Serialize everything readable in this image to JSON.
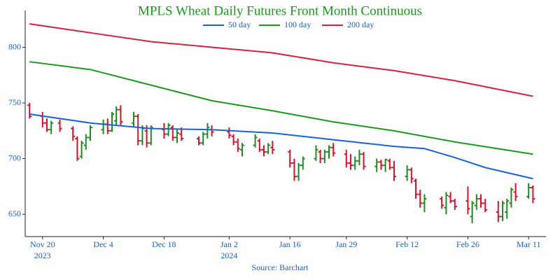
{
  "chart_data": {
    "type": "ohlc",
    "title": "MPLS Wheat Daily Futures Front Month Continuous",
    "source": "Source: Barchart",
    "xlim": [
      "2023-11-16",
      "2024-03-15"
    ],
    "xticks": [
      {
        "value": "2023-11-20",
        "label": "Nov 20",
        "year": "2023"
      },
      {
        "value": "2023-12-04",
        "label": "Dec 4"
      },
      {
        "value": "2023-12-18",
        "label": "Dec 18"
      },
      {
        "value": "2024-01-02",
        "label": "Jan 2",
        "year": "2024"
      },
      {
        "value": "2024-01-16",
        "label": "Jan 16"
      },
      {
        "value": "2024-01-29",
        "label": "Jan 29"
      },
      {
        "value": "2024-02-12",
        "label": "Feb 12"
      },
      {
        "value": "2024-02-26",
        "label": "Feb 26"
      },
      {
        "value": "2024-03-11",
        "label": "Mar 11"
      }
    ],
    "ylim": [
      630,
      833
    ],
    "yticks": [
      650,
      700,
      750,
      800
    ],
    "up_color": "#1e8c1e",
    "down_color": "#e0102a",
    "bars": {
      "x": [
        "2023-11-17",
        "2023-11-20",
        "2023-11-21",
        "2023-11-22",
        "2023-11-24",
        "2023-11-27",
        "2023-11-28",
        "2023-11-29",
        "2023-11-30",
        "2023-12-01",
        "2023-12-04",
        "2023-12-05",
        "2023-12-06",
        "2023-12-07",
        "2023-12-08",
        "2023-12-11",
        "2023-12-12",
        "2023-12-13",
        "2023-12-14",
        "2023-12-15",
        "2023-12-18",
        "2023-12-19",
        "2023-12-20",
        "2023-12-21",
        "2023-12-22",
        "2023-12-26",
        "2023-12-27",
        "2023-12-28",
        "2023-12-29",
        "2024-01-02",
        "2024-01-03",
        "2024-01-04",
        "2024-01-05",
        "2024-01-08",
        "2024-01-09",
        "2024-01-10",
        "2024-01-11",
        "2024-01-12",
        "2024-01-16",
        "2024-01-17",
        "2024-01-18",
        "2024-01-19",
        "2024-01-22",
        "2024-01-23",
        "2024-01-24",
        "2024-01-25",
        "2024-01-26",
        "2024-01-29",
        "2024-01-30",
        "2024-01-31",
        "2024-02-01",
        "2024-02-02",
        "2024-02-05",
        "2024-02-06",
        "2024-02-07",
        "2024-02-08",
        "2024-02-09",
        "2024-02-12",
        "2024-02-13",
        "2024-02-14",
        "2024-02-15",
        "2024-02-16",
        "2024-02-20",
        "2024-02-21",
        "2024-02-22",
        "2024-02-23",
        "2024-02-26",
        "2024-02-27",
        "2024-02-28",
        "2024-02-29",
        "2024-03-01",
        "2024-03-04",
        "2024-03-05",
        "2024-03-06",
        "2024-03-07",
        "2024-03-08",
        "2024-03-11",
        "2024-03-12"
      ],
      "open": [
        748,
        738,
        732,
        726,
        732,
        727,
        718,
        702,
        712,
        719,
        726,
        731,
        725,
        734,
        744,
        732,
        738,
        716,
        725,
        714,
        726,
        722,
        728,
        719,
        722,
        718,
        714,
        722,
        726,
        724,
        720,
        715,
        708,
        712,
        716,
        708,
        706,
        710,
        706,
        696,
        684,
        694,
        700,
        706,
        700,
        706,
        710,
        704,
        696,
        694,
        698,
        704,
        693,
        697,
        694,
        698,
        692,
        684,
        690,
        680,
        668,
        660,
        664,
        656,
        666,
        662,
        662,
        648,
        658,
        664,
        660,
        652,
        648,
        652,
        660,
        670,
        666,
        674
      ],
      "high": [
        750,
        742,
        736,
        734,
        735,
        729,
        720,
        716,
        722,
        730,
        735,
        736,
        742,
        747,
        748,
        742,
        740,
        730,
        730,
        730,
        732,
        732,
        730,
        726,
        728,
        720,
        724,
        732,
        730,
        728,
        722,
        718,
        714,
        722,
        718,
        712,
        714,
        716,
        708,
        700,
        696,
        702,
        712,
        708,
        708,
        712,
        714,
        708,
        704,
        702,
        708,
        706,
        700,
        699,
        700,
        700,
        698,
        694,
        692,
        682,
        672,
        668,
        666,
        670,
        670,
        664,
        675,
        662,
        668,
        668,
        664,
        662,
        662,
        664,
        674,
        678,
        678,
        676
      ],
      "low": [
        736,
        728,
        724,
        722,
        724,
        716,
        698,
        700,
        708,
        716,
        722,
        722,
        724,
        730,
        730,
        728,
        712,
        712,
        710,
        712,
        718,
        720,
        716,
        714,
        716,
        712,
        712,
        718,
        720,
        718,
        712,
        706,
        702,
        710,
        706,
        702,
        704,
        704,
        692,
        680,
        680,
        690,
        698,
        696,
        696,
        700,
        702,
        692,
        690,
        690,
        694,
        690,
        688,
        690,
        688,
        690,
        680,
        680,
        678,
        664,
        656,
        652,
        655,
        650,
        660,
        654,
        650,
        642,
        654,
        656,
        652,
        643,
        644,
        646,
        656,
        662,
        664,
        660
      ],
      "close": [
        738,
        732,
        726,
        732,
        727,
        720,
        700,
        714,
        719,
        728,
        731,
        725,
        740,
        744,
        733,
        738,
        716,
        727,
        714,
        728,
        722,
        730,
        719,
        723,
        718,
        714,
        722,
        728,
        724,
        721,
        715,
        709,
        712,
        719,
        708,
        706,
        712,
        708,
        696,
        684,
        694,
        700,
        708,
        700,
        706,
        710,
        705,
        696,
        694,
        698,
        704,
        693,
        697,
        694,
        699,
        692,
        684,
        690,
        682,
        668,
        660,
        664,
        658,
        667,
        662,
        657,
        655,
        660,
        664,
        660,
        654,
        648,
        660,
        662,
        672,
        666,
        674,
        664
      ]
    },
    "series": [
      {
        "name": "50 day",
        "color": "#1565d8",
        "x": [
          "2023-11-17",
          "2023-12-01",
          "2023-12-15",
          "2023-12-29",
          "2024-01-12",
          "2024-01-26",
          "2024-02-09",
          "2024-02-16",
          "2024-02-23",
          "2024-03-01",
          "2024-03-12"
        ],
        "values": [
          740,
          732,
          727,
          726,
          723,
          717,
          711,
          709,
          701,
          692,
          682
        ]
      },
      {
        "name": "100 day",
        "color": "#1a9a1a",
        "x": [
          "2023-11-17",
          "2023-12-01",
          "2023-12-15",
          "2023-12-29",
          "2024-01-12",
          "2024-01-26",
          "2024-02-09",
          "2024-02-23",
          "2024-03-12"
        ],
        "values": [
          787,
          780,
          766,
          752,
          743,
          733,
          725,
          715,
          704
        ]
      },
      {
        "name": "200 day",
        "color": "#dc1f3c",
        "x": [
          "2023-11-17",
          "2023-12-01",
          "2023-12-15",
          "2023-12-29",
          "2024-01-12",
          "2024-01-26",
          "2024-02-09",
          "2024-02-23",
          "2024-03-12"
        ],
        "values": [
          821,
          813,
          805,
          800,
          795,
          786,
          779,
          770,
          756
        ]
      }
    ]
  }
}
